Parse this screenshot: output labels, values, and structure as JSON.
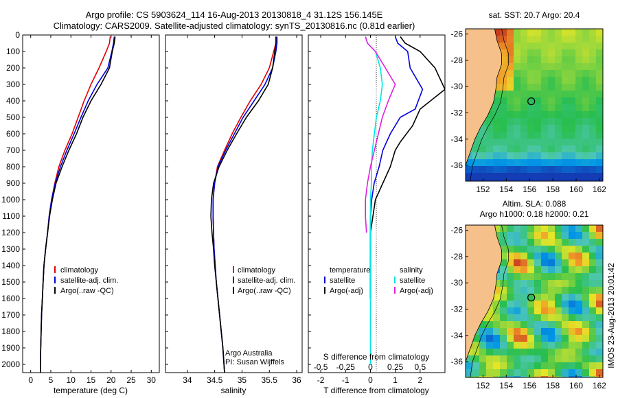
{
  "header": {
    "line1": "Argo profile: CS 5903624_114 16-Aug-2013 20130818_4 31.12S 156.145E",
    "line2": "Climatology: CARS2009. Satellite-adjusted climatology: synTS_20130816.nc (0.81d earlier)"
  },
  "colors": {
    "climatology": "#e00000",
    "satellite": "#0000dd",
    "argo": "#000000",
    "satellite_s": "#00e5e5",
    "argo_s": "#e020e0",
    "land": "#f5c08a"
  },
  "footnote": "IMOS 23-Aug-2013 20:01:42",
  "chart_data": [
    {
      "type": "line",
      "name": "temperature-profile",
      "xlabel": "temperature (deg C)",
      "xlim": [
        -2,
        32
      ],
      "ylim": [
        2050,
        0
      ],
      "xticks": [
        "0",
        "5",
        "10",
        "15",
        "20",
        "25",
        "30"
      ],
      "xtick_values": [
        0,
        5,
        10,
        15,
        20,
        25,
        30
      ],
      "yticks": [
        "0",
        "100",
        "200",
        "300",
        "400",
        "500",
        "600",
        "700",
        "800",
        "900",
        "1000",
        "1100",
        "1200",
        "1300",
        "1400",
        "1500",
        "1600",
        "1700",
        "1800",
        "1900",
        "2000"
      ],
      "ytick_values": [
        0,
        100,
        200,
        300,
        400,
        500,
        600,
        700,
        800,
        900,
        1000,
        1100,
        1200,
        1300,
        1400,
        1500,
        1600,
        1700,
        1800,
        1900,
        2000
      ],
      "legend": [
        "climatology",
        "satellite-adj. clim.",
        "Argo(..raw -QC)"
      ],
      "series": [
        {
          "name": "climatology",
          "color": "#e00000",
          "x": [
            19.8,
            19.6,
            18.8,
            17.0,
            15.0,
            13.3,
            11.8,
            10.3,
            8.5,
            7.0,
            6.0,
            5.2,
            4.6,
            4.2,
            3.7,
            3.3,
            3.1,
            2.9,
            2.7,
            2.6,
            2.5,
            2.4,
            2.4
          ],
          "y": [
            10,
            50,
            100,
            200,
            300,
            400,
            500,
            600,
            700,
            800,
            900,
            1000,
            1100,
            1200,
            1300,
            1400,
            1500,
            1600,
            1700,
            1800,
            1900,
            2000,
            2050
          ]
        },
        {
          "name": "satellite-adj. clim.",
          "color": "#0000dd",
          "x": [
            20.8,
            20.6,
            20.2,
            19.2,
            16.5,
            14.3,
            12.5,
            10.8,
            9.0,
            7.4,
            6.1,
            5.2,
            4.6,
            4.2,
            3.7,
            3.3,
            3.1,
            2.9,
            2.7,
            2.6,
            2.5,
            2.4,
            2.4
          ],
          "y": [
            10,
            50,
            100,
            200,
            300,
            400,
            500,
            600,
            700,
            800,
            900,
            1000,
            1100,
            1200,
            1300,
            1400,
            1500,
            1600,
            1700,
            1800,
            1900,
            2000,
            2050
          ]
        },
        {
          "name": "Argo(..raw -QC)",
          "color": "#000000",
          "x": [
            21.0,
            20.8,
            20.3,
            19.6,
            17.5,
            15.0,
            13.0,
            11.4,
            9.5,
            7.8,
            6.3,
            5.4,
            4.7,
            4.2,
            3.7,
            3.3,
            3.1,
            2.9,
            2.7,
            2.6,
            2.5,
            2.4,
            2.4
          ],
          "y": [
            10,
            50,
            100,
            200,
            300,
            400,
            500,
            600,
            700,
            800,
            900,
            1000,
            1100,
            1200,
            1300,
            1400,
            1500,
            1600,
            1700,
            1800,
            1900,
            2000,
            2050
          ]
        }
      ]
    },
    {
      "type": "line",
      "name": "salinity-profile",
      "xlabel": "salinity",
      "xlim": [
        33.6,
        36.1
      ],
      "ylim": [
        2050,
        0
      ],
      "xticks": [
        "34",
        "34.5",
        "35",
        "35.5",
        "36"
      ],
      "xtick_values": [
        34,
        34.5,
        35,
        35.5,
        36
      ],
      "legend": [
        "climatology",
        "satellite-adj. clim.",
        "Argo(..raw -QC)"
      ],
      "annotations": [
        "Argo Australia",
        "PI: Susan Wijffels"
      ],
      "series": [
        {
          "name": "climatology",
          "color": "#e00000",
          "x": [
            35.62,
            35.62,
            35.58,
            35.5,
            35.35,
            35.15,
            34.98,
            34.82,
            34.68,
            34.55,
            34.5,
            34.47,
            34.47,
            34.48,
            34.49,
            34.51,
            34.53,
            34.56,
            34.59,
            34.62,
            34.65,
            34.67,
            34.68
          ],
          "y": [
            10,
            50,
            100,
            200,
            300,
            400,
            500,
            600,
            700,
            800,
            900,
            1000,
            1100,
            1200,
            1300,
            1400,
            1500,
            1600,
            1700,
            1800,
            1900,
            2000,
            2050
          ]
        },
        {
          "name": "satellite-adj. clim.",
          "color": "#0000dd",
          "x": [
            35.64,
            35.64,
            35.62,
            35.56,
            35.42,
            35.22,
            35.02,
            34.86,
            34.7,
            34.56,
            34.5,
            34.47,
            34.47,
            34.48,
            34.49,
            34.51,
            34.53,
            34.56,
            34.59,
            34.62,
            34.65,
            34.67,
            34.68
          ],
          "y": [
            10,
            50,
            100,
            200,
            300,
            400,
            500,
            600,
            700,
            800,
            900,
            1000,
            1100,
            1200,
            1300,
            1400,
            1500,
            1600,
            1700,
            1800,
            1900,
            2000,
            2050
          ]
        },
        {
          "name": "Argo(..raw -QC)",
          "color": "#000000",
          "x": [
            35.62,
            35.62,
            35.6,
            35.56,
            35.48,
            35.3,
            35.08,
            34.9,
            34.73,
            34.58,
            34.48,
            34.44,
            34.43,
            34.45,
            34.48,
            34.5,
            34.53,
            34.56,
            34.59,
            34.62,
            34.65,
            34.67,
            34.68
          ],
          "y": [
            10,
            50,
            100,
            200,
            300,
            400,
            500,
            600,
            700,
            800,
            900,
            1000,
            1100,
            1200,
            1300,
            1400,
            1500,
            1600,
            1700,
            1800,
            1900,
            2000,
            2050
          ]
        }
      ]
    },
    {
      "type": "line",
      "name": "difference-profile",
      "xlabel": "T difference from climatology",
      "xlabel_top": "S difference from climatology",
      "xlim": [
        -2.5,
        3.0
      ],
      "ylim": [
        2050,
        0
      ],
      "xticks": [
        "-2",
        "-1",
        "0",
        "1",
        "2"
      ],
      "xtick_values": [
        -2,
        -1,
        0,
        1,
        2
      ],
      "sticks": [
        "-0.5",
        "-0.25",
        "0",
        "0.25",
        "0.5"
      ],
      "stick_values": [
        -0.5,
        -0.25,
        0,
        0.25,
        0.5
      ],
      "legend": [
        "temperature",
        "satellite",
        "Argo(-adj)",
        "salinity",
        "satellite",
        "Argo(-adj)"
      ],
      "series": [
        {
          "name": "temperature satellite",
          "color": "#0000dd",
          "x": [
            1.0,
            1.1,
            1.5,
            1.6,
            2.1,
            1.8,
            1.2,
            0.8,
            0.5,
            0.35,
            0.15,
            0.05,
            0.0,
            0.0,
            0.0,
            0.0,
            0.0,
            0.0
          ],
          "y": [
            10,
            50,
            100,
            200,
            330,
            450,
            500,
            600,
            700,
            800,
            900,
            1000,
            1100,
            1200,
            1300,
            1400,
            1500,
            1600
          ]
        },
        {
          "name": "temperature Argo(-adj)",
          "color": "#000000",
          "x": [
            1.2,
            1.4,
            2.0,
            2.6,
            3.0,
            2.0,
            1.7,
            1.2,
            1.0,
            0.8,
            0.5,
            0.2,
            0.1,
            0.0,
            0.0,
            0.0,
            0.0,
            0.0
          ],
          "y": [
            10,
            50,
            100,
            200,
            330,
            450,
            550,
            650,
            700,
            800,
            900,
            1000,
            1100,
            1200,
            1300,
            1400,
            1500,
            1600
          ]
        },
        {
          "name": "salinity satellite",
          "color": "#00e5e5",
          "x": [
            -0.05,
            -0.03,
            0.05,
            0.1,
            0.12,
            0.1,
            0.06,
            0.04,
            0.02,
            0.01,
            0.01,
            0.0,
            0.0,
            0.0,
            0.0,
            0.0,
            0.0,
            0.0,
            0.0,
            0.0,
            0.0,
            0.0
          ],
          "y": [
            10,
            50,
            100,
            200,
            300,
            400,
            500,
            600,
            700,
            800,
            900,
            1000,
            1100,
            1200,
            1300,
            1400,
            1500,
            1600,
            1700,
            1800,
            1900,
            2000
          ]
        },
        {
          "name": "salinity Argo(-adj)",
          "color": "#e020e0",
          "x": [
            -0.05,
            -0.03,
            0.05,
            0.15,
            0.25,
            0.18,
            0.12,
            0.08,
            0.04,
            0.0,
            -0.03,
            -0.05,
            -0.05,
            -0.04
          ],
          "y": [
            10,
            50,
            100,
            200,
            300,
            400,
            500,
            600,
            700,
            800,
            900,
            1000,
            1100,
            1200
          ]
        }
      ]
    },
    {
      "type": "heatmap",
      "name": "sst-map",
      "title": "sat. SST: 20.7  Argo: 20.4",
      "xticks": [
        "152",
        "154",
        "156",
        "158",
        "160",
        "162"
      ],
      "xtick_values": [
        152,
        154,
        156,
        158,
        160,
        162
      ],
      "yticks": [
        "-26",
        "-28",
        "-30",
        "-32",
        "-34",
        "-36"
      ],
      "ytick_values": [
        -26,
        -28,
        -30,
        -32,
        -34,
        -36
      ],
      "xlim": [
        150.5,
        162.3
      ],
      "ylim": [
        -37.2,
        -25.6
      ],
      "float_position": [
        156.145,
        -31.12
      ]
    },
    {
      "type": "heatmap",
      "name": "sla-map",
      "title": "Altim. SLA: 0.088",
      "subtitle": "Argo h1000: 0.18  h2000: 0.21",
      "xticks": [
        "152",
        "154",
        "156",
        "158",
        "160",
        "162"
      ],
      "xtick_values": [
        152,
        154,
        156,
        158,
        160,
        162
      ],
      "yticks": [
        "-26",
        "-28",
        "-30",
        "-32",
        "-34",
        "-36"
      ],
      "ytick_values": [
        -26,
        -28,
        -30,
        -32,
        -34,
        -36
      ],
      "xlim": [
        150.5,
        162.3
      ],
      "ylim": [
        -37.2,
        -25.6
      ],
      "float_position": [
        156.145,
        -31.12
      ]
    }
  ]
}
